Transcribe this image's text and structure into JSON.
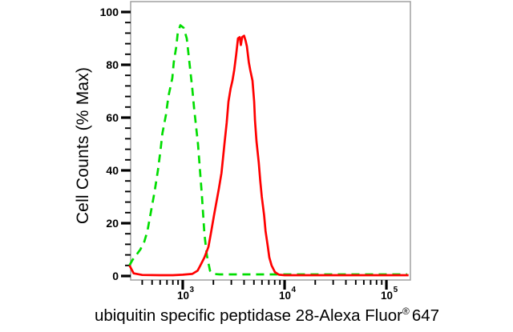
{
  "chart_data": {
    "type": "line",
    "subtype": "flow-cytometry-histogram",
    "ylabel": "Cell Counts (% Max)",
    "xlabel_prefix": "ubiquitin specific peptidase 28-Alexa Fluor",
    "xlabel_registered": "®",
    "xlabel_suffix": "647",
    "x_scale": "log",
    "x_range": [
      308,
      172000
    ],
    "y_range": [
      0,
      104
    ],
    "grid": "off",
    "legend": "none",
    "y_ticks": [
      0,
      20,
      40,
      60,
      80,
      100
    ],
    "y_minor_step": 4,
    "x_ticks": [
      {
        "value": 1000,
        "base": "10",
        "exp": "3"
      },
      {
        "value": 10000,
        "base": "10",
        "exp": "4"
      },
      {
        "value": 100000,
        "base": "10",
        "exp": "5"
      }
    ],
    "x_minor_multipliers": [
      2,
      3,
      4,
      5,
      6,
      7,
      8,
      9
    ],
    "colors": {
      "frame": "#9a9a9a",
      "text": "#000000",
      "green_curve": "#00dd00",
      "red_curve": "#ff0000"
    },
    "series": [
      {
        "name": "green-dashed-control",
        "color": "#00dd00",
        "dashed": true,
        "peak": {
          "x": 947,
          "y": 95
        },
        "points": [
          [
            300,
            4
          ],
          [
            320,
            6
          ],
          [
            350,
            8
          ],
          [
            383,
            10
          ],
          [
            419,
            13
          ],
          [
            450,
            17
          ],
          [
            475,
            22
          ],
          [
            530,
            32
          ],
          [
            570,
            40
          ],
          [
            602,
            47
          ],
          [
            631,
            54
          ],
          [
            684,
            61
          ],
          [
            723,
            68
          ],
          [
            790,
            75
          ],
          [
            817,
            81
          ],
          [
            865,
            87
          ],
          [
            893,
            92
          ],
          [
            947,
            95
          ],
          [
            1020,
            94
          ],
          [
            1095,
            90
          ],
          [
            1177,
            79
          ],
          [
            1242,
            71
          ],
          [
            1289,
            64
          ],
          [
            1412,
            50
          ],
          [
            1545,
            30
          ],
          [
            1633,
            16
          ],
          [
            1722,
            8
          ],
          [
            1853,
            2
          ],
          [
            1992,
            0.8
          ],
          [
            2300,
            0.6
          ],
          [
            3000,
            0.6
          ],
          [
            4000,
            0.6
          ],
          [
            5500,
            0.6
          ],
          [
            7500,
            0.6
          ],
          [
            10000,
            0.6
          ],
          [
            20000,
            0.6
          ],
          [
            40000,
            0.6
          ],
          [
            80000,
            0.6
          ],
          [
            160000,
            0.6
          ]
        ]
      },
      {
        "name": "red-solid-stained",
        "color": "#ff0000",
        "dashed": false,
        "peak": {
          "x": 3890,
          "y": 91
        },
        "points": [
          [
            300,
            4
          ],
          [
            330,
            1
          ],
          [
            400,
            0.4
          ],
          [
            600,
            0.3
          ],
          [
            800,
            0.3
          ],
          [
            1000,
            0.5
          ],
          [
            1242,
            0.8
          ],
          [
            1400,
            2
          ],
          [
            1490,
            4
          ],
          [
            1633,
            7
          ],
          [
            1786,
            11
          ],
          [
            1887,
            16
          ],
          [
            2028,
            23
          ],
          [
            2142,
            28
          ],
          [
            2260,
            33
          ],
          [
            2400,
            39
          ],
          [
            2477,
            44
          ],
          [
            2566,
            50
          ],
          [
            2700,
            58
          ],
          [
            2811,
            66
          ],
          [
            2950,
            71
          ],
          [
            3076,
            74
          ],
          [
            3200,
            78
          ],
          [
            3350,
            84
          ],
          [
            3490,
            90
          ],
          [
            3620,
            90.5
          ],
          [
            3720,
            87.5
          ],
          [
            3830,
            90.5
          ],
          [
            4000,
            91
          ],
          [
            4150,
            89
          ],
          [
            4266,
            87
          ],
          [
            4450,
            81
          ],
          [
            4600,
            78
          ],
          [
            4842,
            74
          ],
          [
            5030,
            66
          ],
          [
            5122,
            59
          ],
          [
            5297,
            51
          ],
          [
            5581,
            43
          ],
          [
            5775,
            36
          ],
          [
            5976,
            30
          ],
          [
            6292,
            23
          ],
          [
            6510,
            17
          ],
          [
            6853,
            11
          ],
          [
            7089,
            7
          ],
          [
            7457,
            4
          ],
          [
            8045,
            1.5
          ],
          [
            8810,
            0.5
          ],
          [
            10000,
            0.3
          ],
          [
            20000,
            0.3
          ],
          [
            50000,
            0.3
          ],
          [
            100000,
            0.3
          ],
          [
            165000,
            0.3
          ]
        ]
      }
    ]
  }
}
